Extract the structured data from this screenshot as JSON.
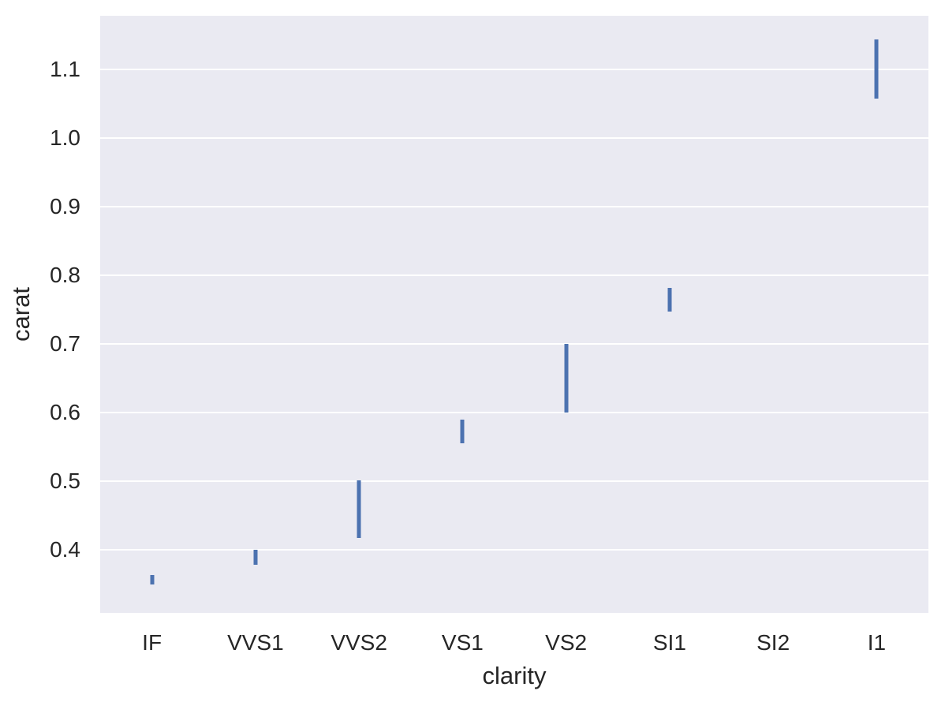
{
  "chart_data": {
    "type": "bar",
    "subtype": "vertical-range-bars",
    "title": "",
    "xlabel": "clarity",
    "ylabel": "carat",
    "categories": [
      "IF",
      "VVS1",
      "VVS2",
      "VS1",
      "VS2",
      "SI1",
      "SI2",
      "I1"
    ],
    "bars": [
      {
        "category": "IF",
        "low": 0.349,
        "high": 0.363
      },
      {
        "category": "VVS1",
        "low": 0.378,
        "high": 0.4
      },
      {
        "category": "VVS2",
        "low": 0.417,
        "high": 0.501
      },
      {
        "category": "VS1",
        "low": 0.555,
        "high": 0.59
      },
      {
        "category": "VS2",
        "low": 0.6,
        "high": 0.7
      },
      {
        "category": "SI1",
        "low": 0.747,
        "high": 0.782
      },
      {
        "category": "SI2",
        "low": null,
        "high": null
      },
      {
        "category": "I1",
        "low": 1.057,
        "high": 1.143
      }
    ],
    "yticks": [
      0.4,
      0.5,
      0.6,
      0.7,
      0.8,
      0.9,
      1.0,
      1.1
    ],
    "ytick_labels": [
      "0.4",
      "0.5",
      "0.6",
      "0.7",
      "0.8",
      "0.9",
      "1.0",
      "1.1"
    ],
    "ylim": [
      0.308,
      1.178
    ],
    "grid": true,
    "legend": null,
    "colors": {
      "bar": "#4c72b0",
      "plot_bg": "#eaeaf2",
      "grid": "#ffffff",
      "text": "#262626",
      "fig_bg": "#ffffff"
    }
  }
}
